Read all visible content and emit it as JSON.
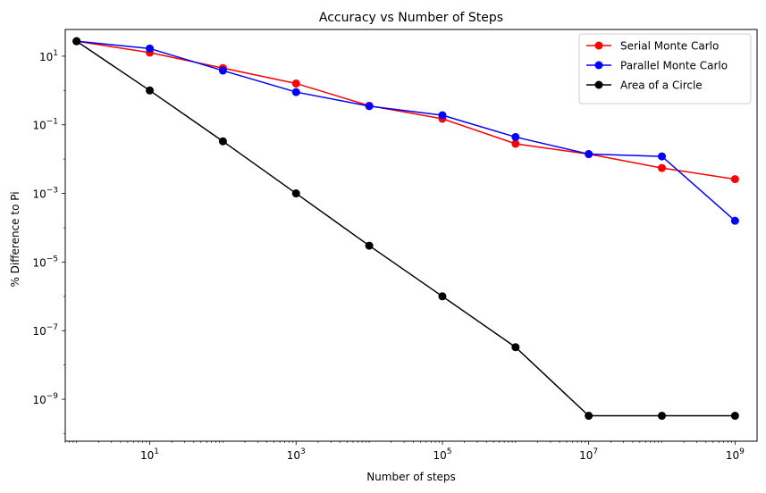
{
  "chart_data": {
    "type": "line",
    "title": "Accuracy vs Number of Steps",
    "xlabel": "Number of steps",
    "ylabel": "% Difference to Pi",
    "xscale": "log",
    "yscale": "log",
    "xlim": [
      0.7,
      2000000000
    ],
    "ylim": [
      6e-11,
      60
    ],
    "grid": false,
    "legend_position": "top-right",
    "x": [
      1,
      10,
      100,
      1000,
      10000,
      100000,
      1000000,
      10000000,
      100000000,
      1000000000
    ],
    "x_ticks": [
      {
        "base": "10",
        "exp": "1",
        "value": 10
      },
      {
        "base": "10",
        "exp": "3",
        "value": 1000
      },
      {
        "base": "10",
        "exp": "5",
        "value": 100000
      },
      {
        "base": "10",
        "exp": "7",
        "value": 10000000
      },
      {
        "base": "10",
        "exp": "9",
        "value": 1000000000
      }
    ],
    "y_ticks": [
      {
        "base": "10",
        "exp": "1",
        "value": 10
      },
      {
        "base": "10",
        "exp": "−1",
        "value": 0.1
      },
      {
        "base": "10",
        "exp": "−3",
        "value": 0.001
      },
      {
        "base": "10",
        "exp": "−5",
        "value": 1e-05
      },
      {
        "base": "10",
        "exp": "−7",
        "value": 1e-07
      },
      {
        "base": "10",
        "exp": "−9",
        "value": 1e-09
      }
    ],
    "series": [
      {
        "name": "Serial Monte Carlo",
        "color": "#ff0000",
        "values": [
          27.3,
          12.7,
          4.5,
          1.6,
          0.36,
          0.15,
          0.028,
          0.014,
          0.0055,
          0.0026
        ]
      },
      {
        "name": "Parallel Monte Carlo",
        "color": "#0000ff",
        "values": [
          27.3,
          16.7,
          3.8,
          0.9,
          0.35,
          0.19,
          0.044,
          0.014,
          0.012,
          0.00016
        ]
      },
      {
        "name": "Area of a Circle",
        "color": "#000000",
        "values": [
          27.3,
          1.0,
          0.033,
          0.001,
          3e-05,
          1e-06,
          3.3e-08,
          3.3e-10,
          3.3e-10,
          3.3e-10
        ]
      }
    ]
  }
}
